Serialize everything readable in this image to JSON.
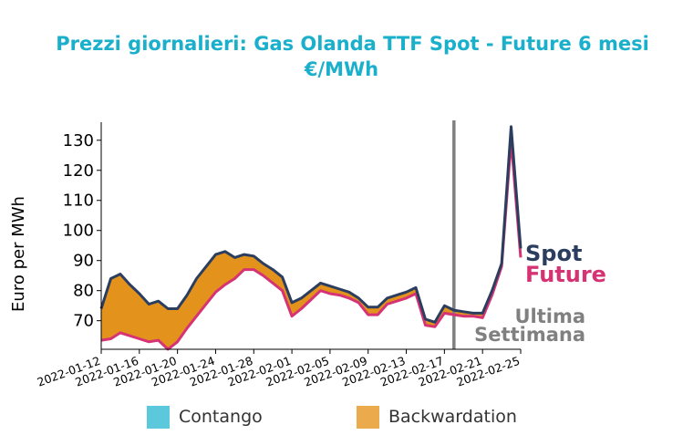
{
  "title": {
    "line1": "Prezzi giornalieri: Gas Olanda TTF Spot - Future 6 mesi",
    "line2": "€/MWh"
  },
  "colors": {
    "title": "#1aafcb",
    "spot": "#2c3e5f",
    "future": "#d63375",
    "backwardation": "#e3931c",
    "contango": "#5bc8dc",
    "week_line": "#808080",
    "week_label": "#808080",
    "legend_backwardation": "#ebab4d"
  },
  "chart_data": {
    "type": "area",
    "ylabel": "Euro per MWh",
    "xlabel": "",
    "ylim": [
      60.5,
      136
    ],
    "yticks": [
      70,
      80,
      90,
      100,
      110,
      120,
      130
    ],
    "xlim": [
      "2022-01-12",
      "2022-02-25"
    ],
    "xtick_labels": [
      "2022-01-12",
      "2022-01-16",
      "2022-01-20",
      "2022-01-24",
      "2022-01-28",
      "2022-02-01",
      "2022-02-05",
      "2022-02-09",
      "2022-02-13",
      "2022-02-17",
      "2022-02-21",
      "2022-02-25"
    ],
    "spot_label": "Spot",
    "future_label": "Future",
    "week_marker": {
      "date": "2022-02-18",
      "label_line1": "Ultima",
      "label_line2": "Settimana"
    },
    "series": [
      {
        "name": "Spot",
        "points": [
          [
            "2022-01-12",
            74
          ],
          [
            "2022-01-13",
            84
          ],
          [
            "2022-01-14",
            85.5
          ],
          [
            "2022-01-15",
            82
          ],
          [
            "2022-01-16",
            79
          ],
          [
            "2022-01-17",
            75.5
          ],
          [
            "2022-01-18",
            76.5
          ],
          [
            "2022-01-19",
            74
          ],
          [
            "2022-01-20",
            74
          ],
          [
            "2022-01-21",
            78.5
          ],
          [
            "2022-01-22",
            84
          ],
          [
            "2022-01-23",
            88
          ],
          [
            "2022-01-24",
            92
          ],
          [
            "2022-01-25",
            93
          ],
          [
            "2022-01-26",
            91
          ],
          [
            "2022-01-27",
            92
          ],
          [
            "2022-01-28",
            91.5
          ],
          [
            "2022-01-29",
            89
          ],
          [
            "2022-01-30",
            87
          ],
          [
            "2022-01-31",
            84.5
          ],
          [
            "2022-02-01",
            76
          ],
          [
            "2022-02-02",
            77.5
          ],
          [
            "2022-02-03",
            80
          ],
          [
            "2022-02-04",
            82.5
          ],
          [
            "2022-02-05",
            81.5
          ],
          [
            "2022-02-06",
            80.5
          ],
          [
            "2022-02-07",
            79.5
          ],
          [
            "2022-02-08",
            77.5
          ],
          [
            "2022-02-09",
            74.5
          ],
          [
            "2022-02-10",
            74.5
          ],
          [
            "2022-02-11",
            77.5
          ],
          [
            "2022-02-12",
            78.5
          ],
          [
            "2022-02-13",
            79.5
          ],
          [
            "2022-02-14",
            81
          ],
          [
            "2022-02-15",
            70.5
          ],
          [
            "2022-02-16",
            69.5
          ],
          [
            "2022-02-17",
            75
          ],
          [
            "2022-02-18",
            73.5
          ],
          [
            "2022-02-19",
            73
          ],
          [
            "2022-02-20",
            72.5
          ],
          [
            "2022-02-21",
            72.5
          ],
          [
            "2022-02-22",
            80
          ],
          [
            "2022-02-23",
            89
          ],
          [
            "2022-02-24",
            134.5
          ],
          [
            "2022-02-25",
            94
          ]
        ]
      },
      {
        "name": "Future",
        "points": [
          [
            "2022-01-12",
            63.5
          ],
          [
            "2022-01-13",
            64
          ],
          [
            "2022-01-14",
            66
          ],
          [
            "2022-01-15",
            65
          ],
          [
            "2022-01-16",
            64
          ],
          [
            "2022-01-17",
            63
          ],
          [
            "2022-01-18",
            63.5
          ],
          [
            "2022-01-19",
            60.5
          ],
          [
            "2022-01-20",
            63
          ],
          [
            "2022-01-21",
            67.5
          ],
          [
            "2022-01-22",
            71.5
          ],
          [
            "2022-01-23",
            75.5
          ],
          [
            "2022-01-24",
            79.5
          ],
          [
            "2022-01-25",
            82
          ],
          [
            "2022-01-26",
            84
          ],
          [
            "2022-01-27",
            87
          ],
          [
            "2022-01-28",
            87
          ],
          [
            "2022-01-29",
            85
          ],
          [
            "2022-01-30",
            82.5
          ],
          [
            "2022-01-31",
            80
          ],
          [
            "2022-02-01",
            71.5
          ],
          [
            "2022-02-02",
            74
          ],
          [
            "2022-02-03",
            77
          ],
          [
            "2022-02-04",
            80
          ],
          [
            "2022-02-05",
            79
          ],
          [
            "2022-02-06",
            78.5
          ],
          [
            "2022-02-07",
            77.5
          ],
          [
            "2022-02-08",
            76
          ],
          [
            "2022-02-09",
            72
          ],
          [
            "2022-02-10",
            72
          ],
          [
            "2022-02-11",
            75.5
          ],
          [
            "2022-02-12",
            76.5
          ],
          [
            "2022-02-13",
            77.5
          ],
          [
            "2022-02-14",
            79
          ],
          [
            "2022-02-15",
            68.5
          ],
          [
            "2022-02-16",
            68
          ],
          [
            "2022-02-17",
            72.5
          ],
          [
            "2022-02-18",
            72
          ],
          [
            "2022-02-19",
            71.5
          ],
          [
            "2022-02-20",
            71.5
          ],
          [
            "2022-02-21",
            71
          ],
          [
            "2022-02-22",
            78.5
          ],
          [
            "2022-02-23",
            88
          ],
          [
            "2022-02-24",
            130
          ],
          [
            "2022-02-25",
            91
          ]
        ]
      }
    ],
    "legend": [
      {
        "label": "Contango",
        "color": "#5bc8dc"
      },
      {
        "label": "Backwardation",
        "color": "#ebab4d"
      }
    ],
    "legend_position": "bottom",
    "grid": false
  }
}
